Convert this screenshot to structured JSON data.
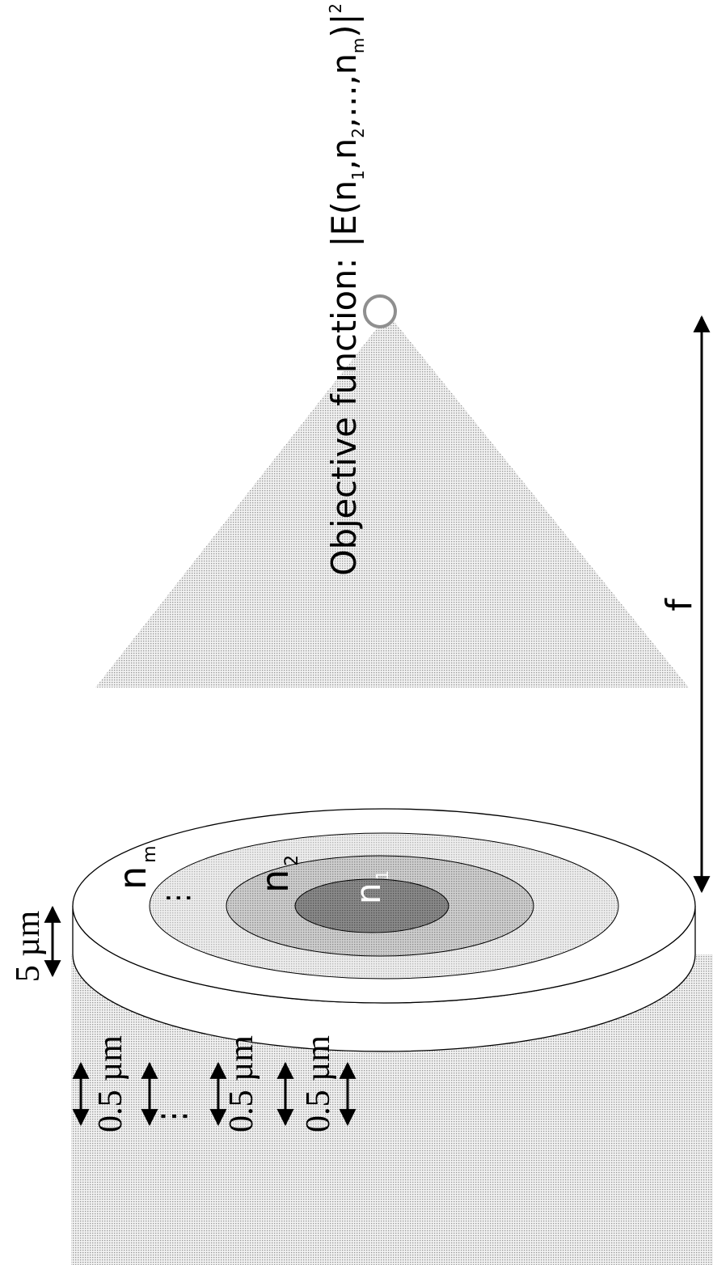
{
  "diagram": {
    "ring_labels": {
      "outer": "n",
      "outer_sub": "m",
      "middle": "n",
      "middle_sub": "2",
      "inner": "n",
      "inner_sub": "1",
      "ellipsis": "⋮"
    },
    "thickness_label": "5 µm",
    "layer_labels": [
      "0.5 µm",
      "⋮",
      "0.5 µm",
      "0.5 µm"
    ],
    "focal_length_label": "f",
    "objective": {
      "prefix": "Objective function: |E(n",
      "sub1": "1",
      "mid1": ",n",
      "sub2": "2",
      "mid2": ",...,n",
      "subm": "m",
      "close": ")|",
      "power": "2"
    }
  }
}
